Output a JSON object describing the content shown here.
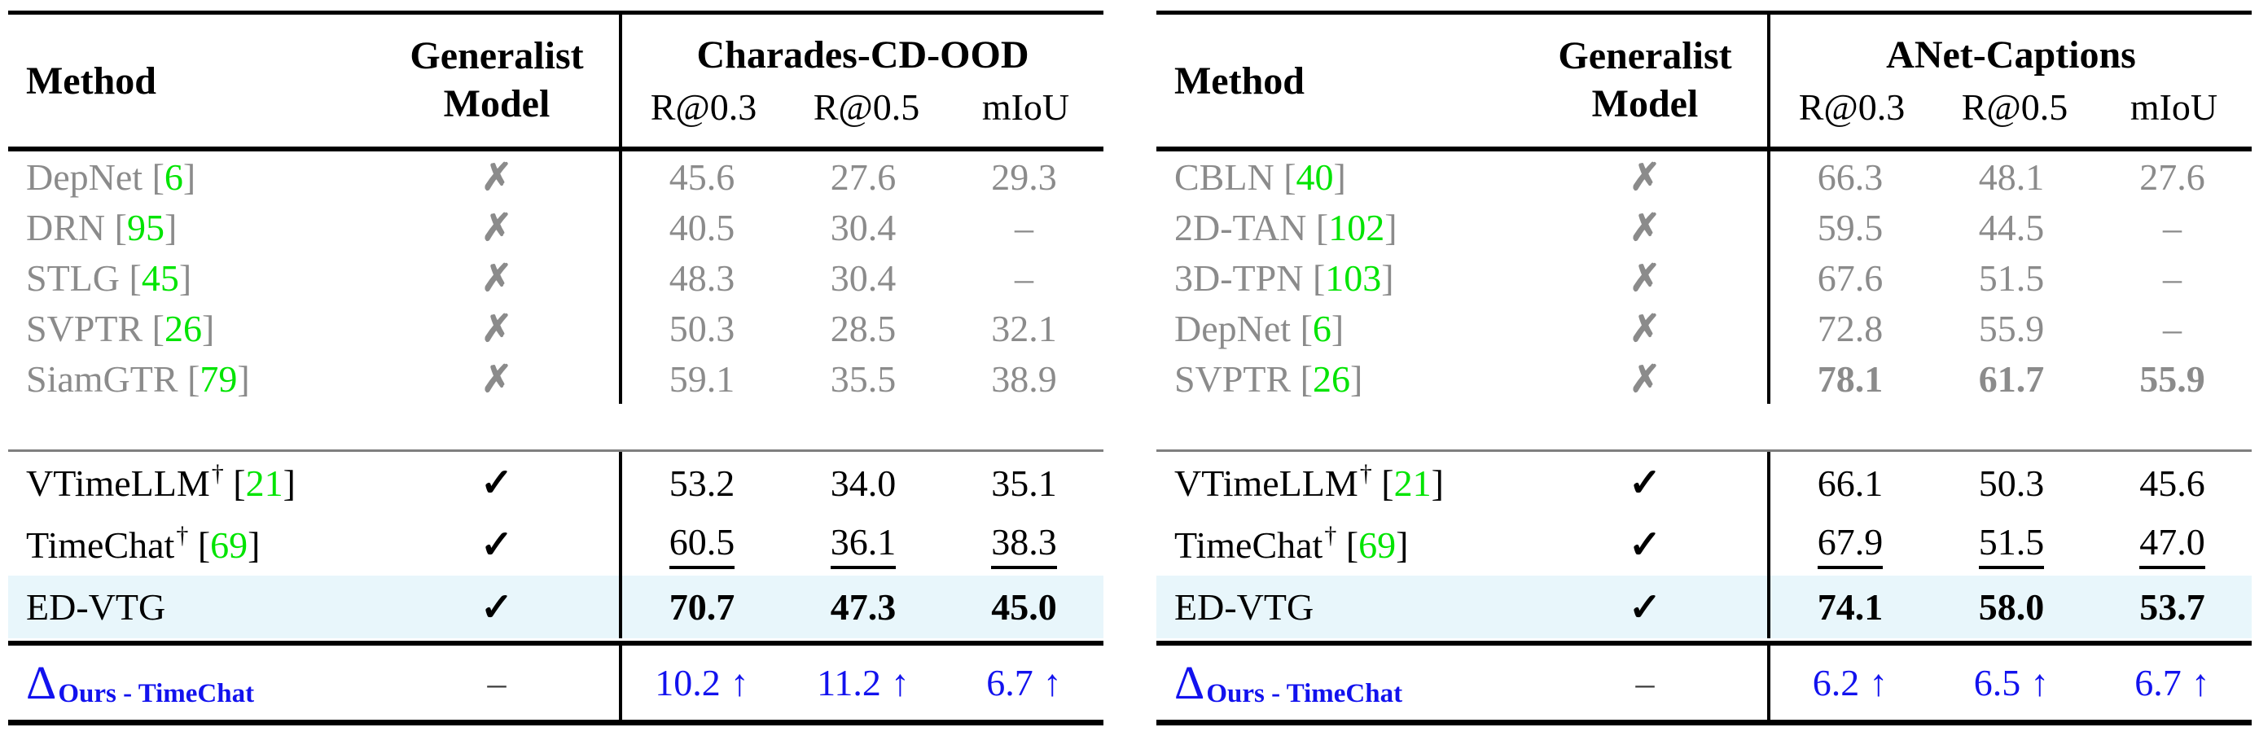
{
  "colors": {
    "gray_text": "#8b8b8b",
    "citation_green": "#00e400",
    "delta_blue": "#1212ee",
    "highlight_row_bg": "#e8f6fb",
    "mid_rule_gray": "#7f7f7f",
    "rule_black": "#000000"
  },
  "glyphs": {
    "cross": "✗",
    "check": "✓",
    "dagger": "†",
    "up_arrow": "↑",
    "delta": "Δ",
    "missing_dash": "–",
    "gen_dash": "–"
  },
  "tables": [
    {
      "header": {
        "method": "Method",
        "generalist_line1": "Generalist",
        "generalist_line2": "Model",
        "benchmark": "Charades-CD-OOD",
        "metrics": [
          "R@0.3",
          "R@0.5",
          "mIoU"
        ]
      },
      "specialist_rows": [
        {
          "method": "DepNet",
          "cite": "6",
          "mark": "cross",
          "values": [
            "45.6",
            "27.6",
            "29.3"
          ],
          "value_style": "gray"
        },
        {
          "method": "DRN",
          "cite": "95",
          "mark": "cross",
          "values": [
            "40.5",
            "30.4",
            "–"
          ],
          "value_style": "gray"
        },
        {
          "method": "STLG",
          "cite": "45",
          "mark": "cross",
          "values": [
            "48.3",
            "30.4",
            "–"
          ],
          "value_style": "gray"
        },
        {
          "method": "SVPTR",
          "cite": "26",
          "mark": "cross",
          "values": [
            "50.3",
            "28.5",
            "32.1"
          ],
          "value_style": "gray"
        },
        {
          "method": "SiamGTR",
          "cite": "79",
          "mark": "cross",
          "values": [
            "59.1",
            "35.5",
            "38.9"
          ],
          "value_style": "gray"
        }
      ],
      "generalist_rows": [
        {
          "method": "VTimeLLM",
          "dagger": true,
          "cite": "21",
          "mark": "check",
          "values": [
            "53.2",
            "34.0",
            "35.1"
          ],
          "value_style": "normal"
        },
        {
          "method": "TimeChat",
          "dagger": true,
          "cite": "69",
          "mark": "check",
          "values": [
            "60.5",
            "36.1",
            "38.3"
          ],
          "value_style": "underline"
        },
        {
          "method": "ED-VTG",
          "mark": "check",
          "values": [
            "70.7",
            "47.3",
            "45.0"
          ],
          "value_style": "bold",
          "highlight": true
        }
      ],
      "delta": {
        "symbol": "Δ",
        "subscript": "Ours - TimeChat",
        "generalist": "–",
        "values": [
          "10.2",
          "11.2",
          "6.7"
        ],
        "arrow": "↑"
      }
    },
    {
      "header": {
        "method": "Method",
        "generalist_line1": "Generalist",
        "generalist_line2": "Model",
        "benchmark": "ANet-Captions",
        "metrics": [
          "R@0.3",
          "R@0.5",
          "mIoU"
        ]
      },
      "specialist_rows": [
        {
          "method": "CBLN",
          "cite": "40",
          "mark": "cross",
          "values": [
            "66.3",
            "48.1",
            "27.6"
          ],
          "value_style": "gray"
        },
        {
          "method": "2D-TAN",
          "cite": "102",
          "mark": "cross",
          "values": [
            "59.5",
            "44.5",
            "–"
          ],
          "value_style": "gray"
        },
        {
          "method": "3D-TPN",
          "cite": "103",
          "mark": "cross",
          "values": [
            "67.6",
            "51.5",
            "–"
          ],
          "value_style": "gray"
        },
        {
          "method": "DepNet",
          "cite": "6",
          "mark": "cross",
          "values": [
            "72.8",
            "55.9",
            "–"
          ],
          "value_style": "gray"
        },
        {
          "method": "SVPTR",
          "cite": "26",
          "mark": "cross",
          "values": [
            "78.1",
            "61.7",
            "55.9"
          ],
          "value_style": "gray-bold"
        }
      ],
      "generalist_rows": [
        {
          "method": "VTimeLLM",
          "dagger": true,
          "cite": "21",
          "mark": "check",
          "values": [
            "66.1",
            "50.3",
            "45.6"
          ],
          "value_style": "normal"
        },
        {
          "method": "TimeChat",
          "dagger": true,
          "cite": "69",
          "mark": "check",
          "values": [
            "67.9",
            "51.5",
            "47.0"
          ],
          "value_style": "underline"
        },
        {
          "method": "ED-VTG",
          "mark": "check",
          "values": [
            "74.1",
            "58.0",
            "53.7"
          ],
          "value_style": "bold",
          "highlight": true
        }
      ],
      "delta": {
        "symbol": "Δ",
        "subscript": "Ours - TimeChat",
        "generalist": "–",
        "values": [
          "6.2",
          "6.5",
          "6.7"
        ],
        "arrow": "↑"
      }
    }
  ]
}
